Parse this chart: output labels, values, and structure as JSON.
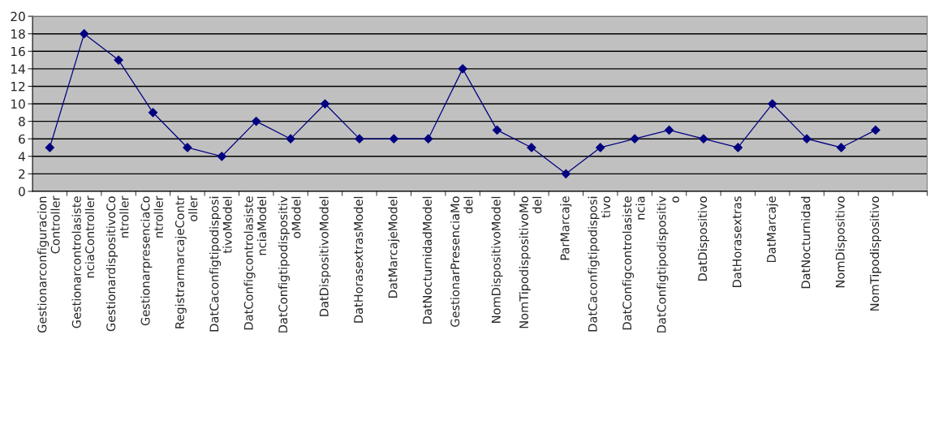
{
  "chart_data": {
    "type": "line",
    "categories": [
      "Gestionarconfiguracion\nController",
      "Gestionarcontrolasiste\nnciaController",
      "GestionardispositivoCo\nntroller",
      "GestionarpresenciaCo\nntroller",
      "RegistrarmarcajeContr\noller",
      "DatCaconfigtipodisposi\ntivoModel",
      "DatConfigcontrolasiste\nnciaModel",
      "DatConfigtipodispositiv\noModel",
      "DatDispositivoModel",
      "DatHorasextrasModel",
      "DatMarcajeModel",
      "DatNocturnidadModel",
      "GestionarPresenciaMo\ndel",
      "NomDispositivoModel",
      "NomTipodispositivoMo\ndel",
      "ParMarcaje",
      "DatCaconfigtipodisposi\ntivo",
      "DatConfigcontrolasiste\nncia",
      "DatConfigtipodispositiv\no",
      "DatDispositivo",
      "DatHorasextras",
      "DatMarcaje",
      "DatNocturnidad",
      "NomDispositivo",
      "NomTipodispositivo",
      null
    ],
    "series": [
      {
        "color": "#000080",
        "values": [
          5,
          18,
          15,
          9,
          5,
          4,
          8,
          6,
          10,
          6,
          6,
          6,
          14,
          7,
          5,
          2,
          5,
          6,
          7,
          6,
          5,
          10,
          6,
          5,
          7,
          null
        ]
      }
    ],
    "ylim": [
      0,
      20
    ],
    "yticks": [
      0,
      2,
      4,
      6,
      8,
      10,
      12,
      14,
      16,
      18,
      20
    ],
    "grid": "y",
    "legend": false,
    "marker": "diamond",
    "line_style": "solid"
  }
}
